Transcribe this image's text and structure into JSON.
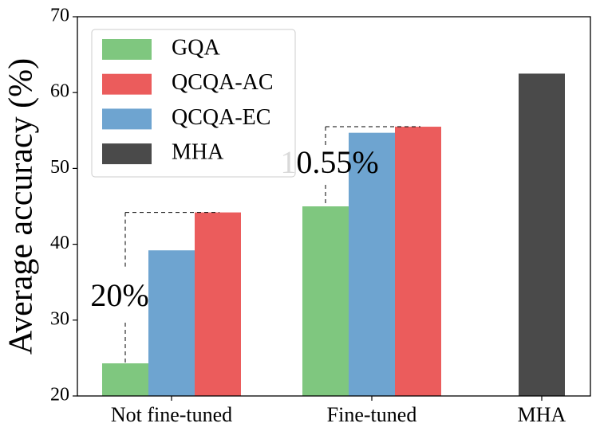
{
  "chart_data": {
    "type": "bar",
    "y_label": "Average accuracy (%)",
    "categories": [
      "Not fine-tuned",
      "Fine-tuned",
      "MHA"
    ],
    "series": [
      {
        "name": "GQA",
        "color": "#7fc77f",
        "values": [
          24.3,
          45.0,
          null
        ]
      },
      {
        "name": "QCQA-EC",
        "color": "#6ea4d0",
        "values": [
          39.2,
          54.7,
          null
        ]
      },
      {
        "name": "QCQA-AC",
        "color": "#eb5c5c",
        "values": [
          44.2,
          55.5,
          null
        ]
      },
      {
        "name": "MHA",
        "color": "#4a4a4a",
        "values": [
          null,
          null,
          62.5
        ]
      }
    ],
    "legend_order": [
      "GQA",
      "QCQA-AC",
      "QCQA-EC",
      "MHA"
    ],
    "legend": "upper left",
    "annotations": [
      "20%",
      "10.55%"
    ],
    "ylim": [
      20,
      70
    ],
    "yticks": [
      20,
      30,
      40,
      50,
      60,
      70
    ],
    "grid": false
  }
}
